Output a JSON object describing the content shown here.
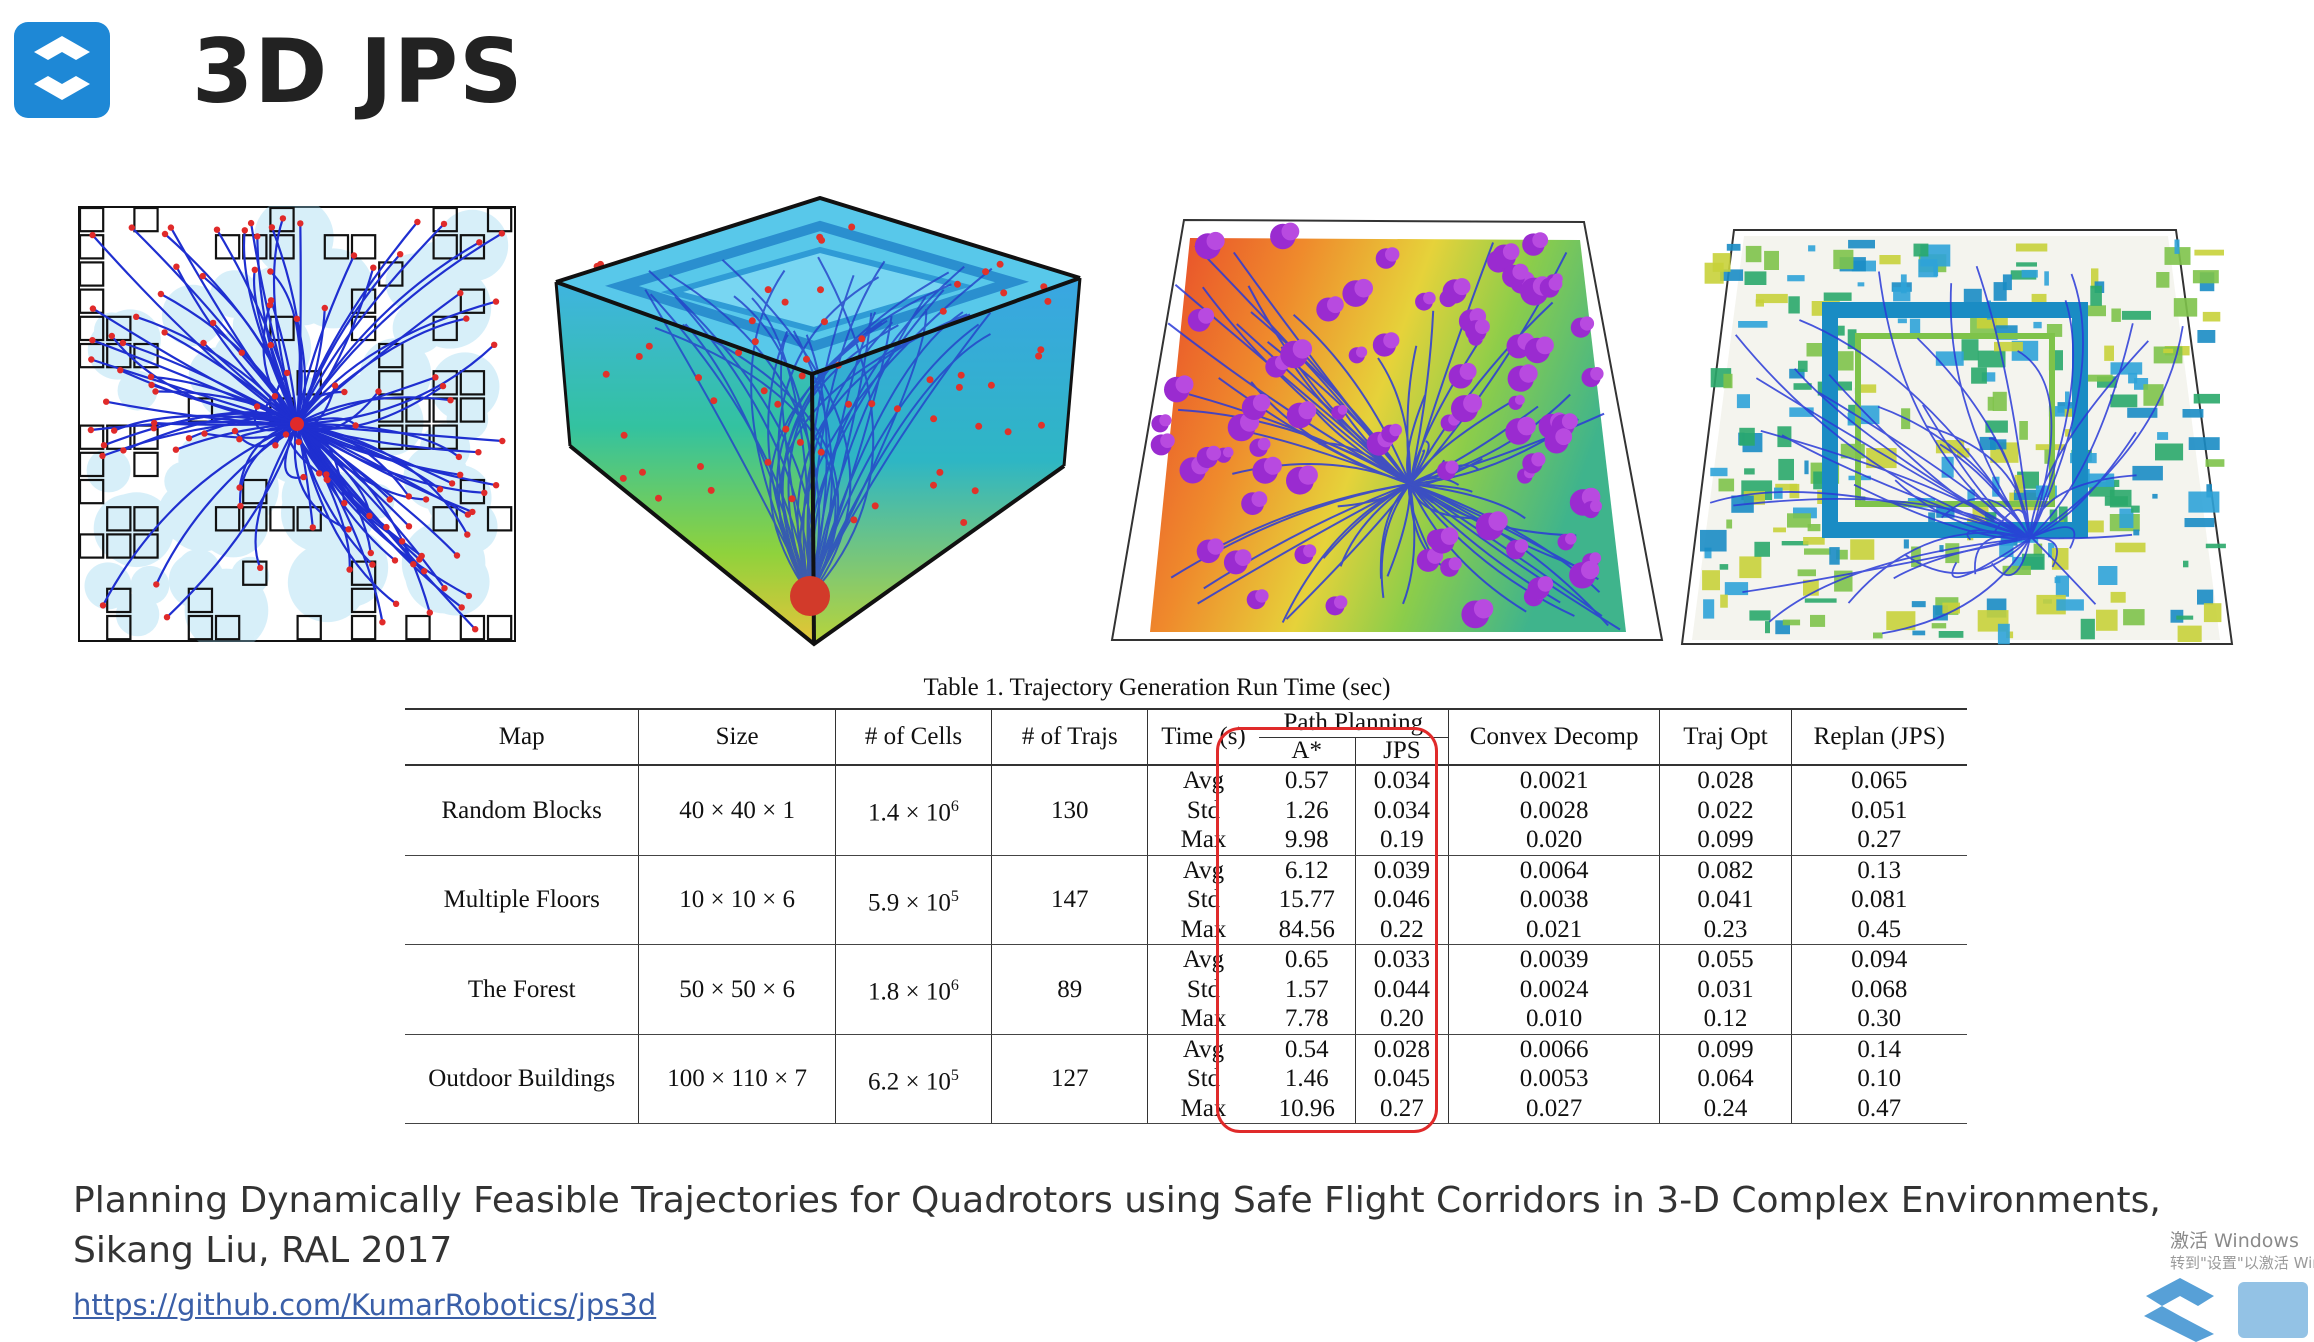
{
  "slide": {
    "title": "3D JPS",
    "citation_line1": "Planning Dynamically Feasible Trajectories for Quadrotors using Safe Flight Corridors in 3-D Complex Environments,",
    "citation_line2": "Sikang Liu, RAL 2017",
    "link": "https://github.com/KumarRobotics/jps3d"
  },
  "figures": [
    "random-blocks-map-figure",
    "multiple-floors-map-figure",
    "forest-map-figure",
    "outdoor-buildings-map-figure"
  ],
  "table": {
    "caption": "Table 1. Trajectory Generation Run Time (sec)",
    "headers": {
      "map": "Map",
      "size": "Size",
      "cells": "# of Cells",
      "trajs": "# of Trajs",
      "time": "Time (s)",
      "path_planning": "Path Planning",
      "astar": "A*",
      "jps": "JPS",
      "convex": "Convex Decomp",
      "trajopt": "Traj Opt",
      "replan": "Replan (JPS)"
    },
    "groups": [
      {
        "map": "Random Blocks",
        "size": "40 × 40 × 1",
        "cells_base": "1.4 × 10",
        "cells_exp": "6",
        "trajs": "130",
        "rows": [
          {
            "stat": "Avg",
            "astar": "0.57",
            "jps": "0.034",
            "convex": "0.0021",
            "trajopt": "0.028",
            "replan": "0.065"
          },
          {
            "stat": "Std",
            "astar": "1.26",
            "jps": "0.034",
            "convex": "0.0028",
            "trajopt": "0.022",
            "replan": "0.051"
          },
          {
            "stat": "Max",
            "astar": "9.98",
            "jps": "0.19",
            "convex": "0.020",
            "trajopt": "0.099",
            "replan": "0.27"
          }
        ]
      },
      {
        "map": "Multiple Floors",
        "size": "10 × 10 × 6",
        "cells_base": "5.9 × 10",
        "cells_exp": "5",
        "trajs": "147",
        "rows": [
          {
            "stat": "Avg",
            "astar": "6.12",
            "jps": "0.039",
            "convex": "0.0064",
            "trajopt": "0.082",
            "replan": "0.13"
          },
          {
            "stat": "Std",
            "astar": "15.77",
            "jps": "0.046",
            "convex": "0.0038",
            "trajopt": "0.041",
            "replan": "0.081"
          },
          {
            "stat": "Max",
            "astar": "84.56",
            "jps": "0.22",
            "convex": "0.021",
            "trajopt": "0.23",
            "replan": "0.45"
          }
        ]
      },
      {
        "map": "The Forest",
        "size": "50 × 50 × 6",
        "cells_base": "1.8 × 10",
        "cells_exp": "6",
        "trajs": "89",
        "rows": [
          {
            "stat": "Avg",
            "astar": "0.65",
            "jps": "0.033",
            "convex": "0.0039",
            "trajopt": "0.055",
            "replan": "0.094"
          },
          {
            "stat": "Std",
            "astar": "1.57",
            "jps": "0.044",
            "convex": "0.0024",
            "trajopt": "0.031",
            "replan": "0.068"
          },
          {
            "stat": "Max",
            "astar": "7.78",
            "jps": "0.20",
            "convex": "0.010",
            "trajopt": "0.12",
            "replan": "0.30"
          }
        ]
      },
      {
        "map": "Outdoor Buildings",
        "size": "100 × 110 × 7",
        "cells_base": "6.2 × 10",
        "cells_exp": "5",
        "trajs": "127",
        "rows": [
          {
            "stat": "Avg",
            "astar": "0.54",
            "jps": "0.028",
            "convex": "0.0066",
            "trajopt": "0.099",
            "replan": "0.14"
          },
          {
            "stat": "Std",
            "astar": "1.46",
            "jps": "0.045",
            "convex": "0.0053",
            "trajopt": "0.064",
            "replan": "0.10"
          },
          {
            "stat": "Max",
            "astar": "10.96",
            "jps": "0.27",
            "convex": "0.027",
            "trajopt": "0.24",
            "replan": "0.47"
          }
        ]
      }
    ]
  },
  "watermark": {
    "line1": "激活 Windows",
    "line2": "转到\"设置\"以激活 Windows。"
  },
  "colors": {
    "title": "#222222",
    "link": "#3a5fa8",
    "highlight": "#e02a2a",
    "logo": "#1e88d6"
  }
}
